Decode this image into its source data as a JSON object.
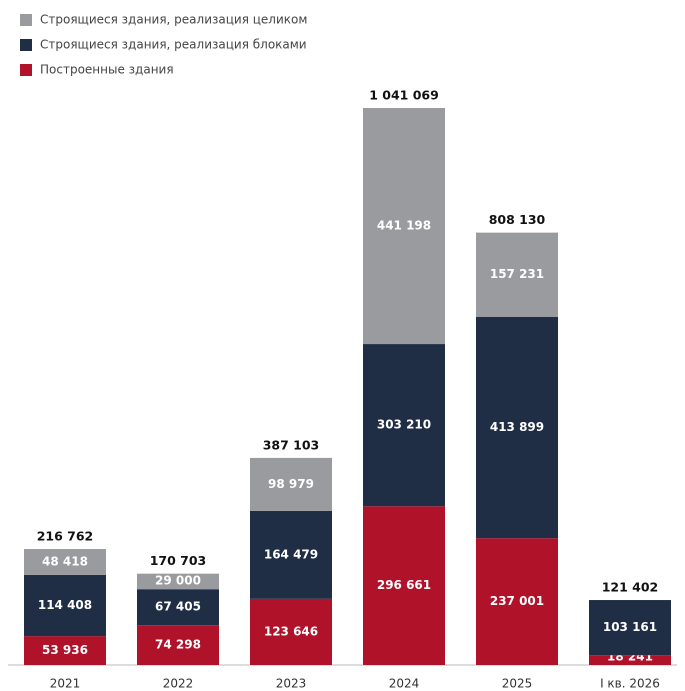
{
  "chart_data": {
    "type": "stacked_bar",
    "categories": [
      "2021",
      "2022",
      "2023",
      "2024",
      "2025",
      "I кв. 2026"
    ],
    "series": [
      {
        "name": "Строящиеся здания, реализация целиком",
        "color": "#9a9b9e",
        "values": [
          48418,
          29000,
          98979,
          441198,
          157231,
          null
        ],
        "value_labels": [
          "48 418",
          "29 000",
          "98 979",
          "441 198",
          "157 231",
          null
        ]
      },
      {
        "name": "Строящиеся здания, реализация блоками",
        "color": "#1f2d45",
        "values": [
          114408,
          67405,
          164479,
          303210,
          413899,
          103161
        ],
        "value_labels": [
          "114 408",
          "67 405",
          "164 479",
          "303 210",
          "413 899",
          "103 161"
        ]
      },
      {
        "name": "Построенные здания",
        "color": "#b0122a",
        "values": [
          53936,
          74298,
          123646,
          296661,
          237001,
          18241
        ],
        "value_labels": [
          "53 936",
          "74 298",
          "123 646",
          "296 661",
          "237 001",
          "18 241"
        ]
      }
    ],
    "totals": {
      "values": [
        216762,
        170703,
        387103,
        1041069,
        808130,
        121402
      ],
      "value_labels": [
        "216 762",
        "170 703",
        "387 103",
        "1 041 069",
        "808 130",
        "121 402"
      ]
    }
  }
}
